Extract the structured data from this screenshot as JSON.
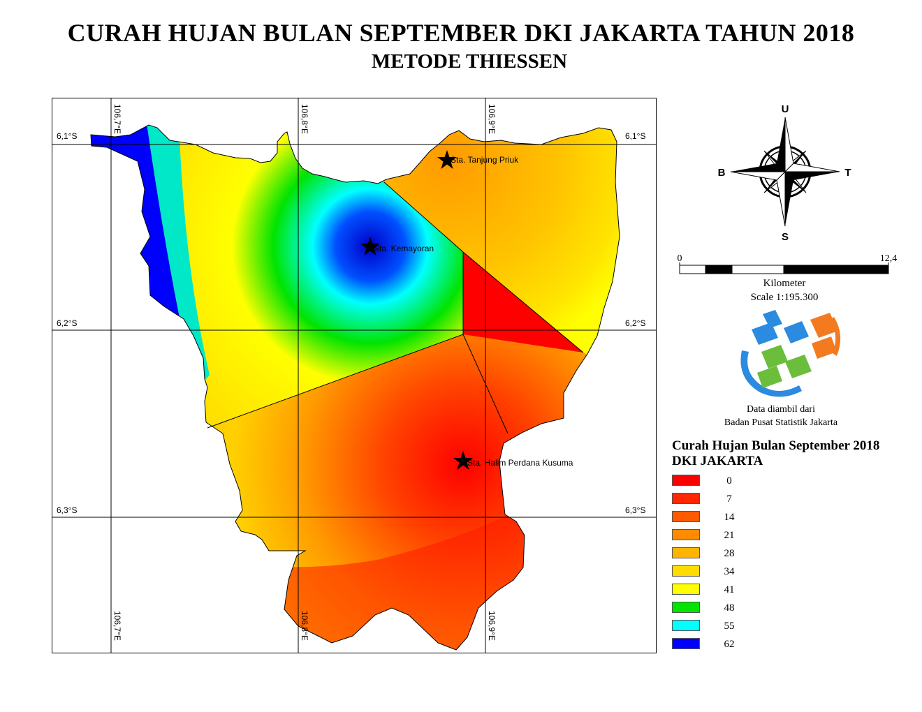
{
  "title": "CURAH HUJAN BULAN SEPTEMBER DKI JAKARTA TAHUN 2018",
  "subtitle": "METODE THIESSEN",
  "map": {
    "grid_lat_labels": [
      "6,1°S",
      "6,2°S",
      "6,3°S"
    ],
    "grid_lon_labels": [
      "106,7°E",
      "106,8°E",
      "106,9°E"
    ],
    "stations": [
      {
        "name": "Sta. Tanjung Priuk"
      },
      {
        "name": "Sta. Kemayoran"
      },
      {
        "name": "Sta. Halim Perdana Kusuma"
      }
    ],
    "colors": {
      "red": "#ff0000",
      "orange": "#ff9000",
      "yellow": "#ffff00",
      "green": "#00e000",
      "cyan": "#00ffff",
      "blue": "#0000ff"
    }
  },
  "north_arrow": {
    "north": "U",
    "south": "S",
    "east": "T",
    "west": "B"
  },
  "scalebar": {
    "start": "0",
    "end": "12,4",
    "unit": "Kilometer",
    "scale": "Scale 1:195.300"
  },
  "source": {
    "line1": "Data diambil dari",
    "line2": "Badan Pusat Statistik Jakarta"
  },
  "legend": {
    "title_line1": "Curah Hujan Bulan September 2018",
    "title_line2": "DKI JAKARTA",
    "items": [
      {
        "label": "0",
        "color": "#ff0000"
      },
      {
        "label": "7",
        "color": "#ff2800"
      },
      {
        "label": "14",
        "color": "#ff5a00"
      },
      {
        "label": "21",
        "color": "#ff8c00"
      },
      {
        "label": "28",
        "color": "#ffb400"
      },
      {
        "label": "34",
        "color": "#ffdc00"
      },
      {
        "label": "41",
        "color": "#ffff00"
      },
      {
        "label": "48",
        "color": "#00e400"
      },
      {
        "label": "55",
        "color": "#00ffff"
      },
      {
        "label": "62",
        "color": "#0000ff"
      }
    ]
  }
}
